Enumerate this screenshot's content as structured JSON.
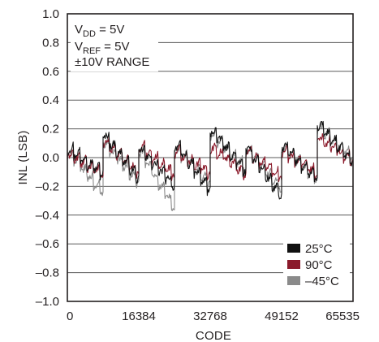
{
  "chart_data": {
    "type": "line",
    "xlabel": "CODE",
    "ylabel": "INL (LSB)",
    "xlim": [
      0,
      65535
    ],
    "ylim": [
      -1.0,
      1.0
    ],
    "x_ticks": [
      "0",
      "16384",
      "32768",
      "49152",
      "65535"
    ],
    "y_ticks": [
      "1.0",
      "0.8",
      "0.6",
      "0.4",
      "0.2",
      "0.0",
      "–0.2",
      "–0.4",
      "–0.6",
      "–0.8",
      "–1.0"
    ],
    "grid": true,
    "legend_position": "bottom-right",
    "annotations": {
      "vdd_main": "V",
      "vdd_sub": "DD",
      "vdd_rest": " = 5V",
      "vref_main": "V",
      "vref_sub": "REF",
      "vref_rest": " = 5V",
      "range": "±10V RANGE"
    },
    "series": [
      {
        "name": "25°C",
        "color": "#111111",
        "segments": [
          {
            "x0": 0,
            "x1": 8192,
            "start": 0.05,
            "end": -0.13
          },
          {
            "x0": 8192,
            "x1": 16384,
            "start": 0.15,
            "end": -0.17
          },
          {
            "x0": 16384,
            "x1": 24576,
            "start": 0.05,
            "end": -0.22
          },
          {
            "x0": 24576,
            "x1": 32768,
            "start": 0.08,
            "end": -0.25
          },
          {
            "x0": 32768,
            "x1": 40960,
            "start": 0.18,
            "end": -0.12
          },
          {
            "x0": 40960,
            "x1": 49152,
            "start": 0.06,
            "end": -0.3
          },
          {
            "x0": 49152,
            "x1": 57344,
            "start": 0.07,
            "end": -0.18
          },
          {
            "x0": 57344,
            "x1": 65535,
            "start": 0.22,
            "end": -0.06
          }
        ]
      },
      {
        "name": "90°C",
        "color": "#8b1a2b",
        "segments": [
          {
            "x0": 0,
            "x1": 8192,
            "start": 0.01,
            "end": -0.14
          },
          {
            "x0": 8192,
            "x1": 16384,
            "start": 0.1,
            "end": -0.13
          },
          {
            "x0": 16384,
            "x1": 24576,
            "start": 0.06,
            "end": -0.14
          },
          {
            "x0": 24576,
            "x1": 32768,
            "start": 0.03,
            "end": -0.13
          },
          {
            "x0": 32768,
            "x1": 40960,
            "start": 0.06,
            "end": -0.14
          },
          {
            "x0": 40960,
            "x1": 49152,
            "start": 0.03,
            "end": -0.16
          },
          {
            "x0": 49152,
            "x1": 57344,
            "start": 0.03,
            "end": -0.14
          },
          {
            "x0": 57344,
            "x1": 65535,
            "start": 0.12,
            "end": -0.05
          }
        ]
      },
      {
        "name": "–45°C",
        "color": "#8a8a8a",
        "segments": [
          {
            "x0": 0,
            "x1": 8192,
            "start": 0.03,
            "end": -0.27
          },
          {
            "x0": 8192,
            "x1": 16384,
            "start": 0.1,
            "end": -0.2
          },
          {
            "x0": 16384,
            "x1": 24576,
            "start": 0.04,
            "end": -0.38
          },
          {
            "x0": 24576,
            "x1": 32768,
            "start": 0.05,
            "end": -0.2
          },
          {
            "x0": 32768,
            "x1": 40960,
            "start": 0.15,
            "end": -0.1
          },
          {
            "x0": 40960,
            "x1": 49152,
            "start": 0.04,
            "end": -0.24
          },
          {
            "x0": 49152,
            "x1": 57344,
            "start": 0.05,
            "end": -0.16
          },
          {
            "x0": 57344,
            "x1": 65535,
            "start": 0.2,
            "end": -0.03
          }
        ]
      }
    ]
  }
}
